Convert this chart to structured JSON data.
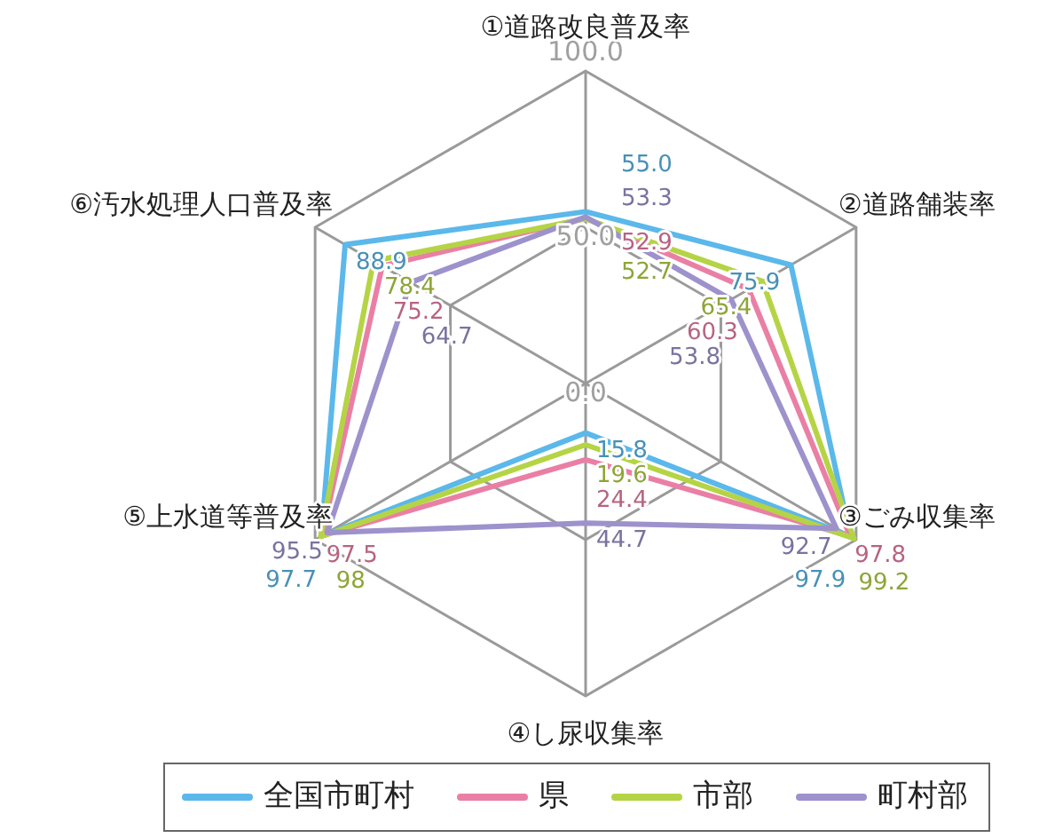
{
  "chart_data": {
    "type": "radar",
    "categories": [
      "①道路改良普及率",
      "②道路舗装率",
      "③ごみ収集率",
      "④し尿収集率",
      "⑤上水道等普及率",
      "⑥汚水処理人口普及率"
    ],
    "ylim": [
      0,
      100
    ],
    "yticks": [
      {
        "value": 0,
        "label": "0.0"
      },
      {
        "value": 50,
        "label": "50.0"
      },
      {
        "value": 100,
        "label": "100.0"
      }
    ],
    "grid": true,
    "legend": "bottom",
    "series": [
      {
        "name": "全国市町村",
        "color": "#5bb8ea",
        "values": [
          55.0,
          75.9,
          97.9,
          15.8,
          97.7,
          88.9
        ],
        "value_labels": [
          "55.0",
          "75.9",
          "97.9",
          "15.8",
          "97.7",
          "88.9"
        ]
      },
      {
        "name": "県",
        "color": "#ea7fa5",
        "values": [
          52.9,
          60.3,
          97.8,
          24.4,
          97.5,
          75.2
        ],
        "value_labels": [
          "52.9",
          "60.3",
          "97.8",
          "24.4",
          "97.5",
          "75.2"
        ]
      },
      {
        "name": "市部",
        "color": "#b5d445",
        "values": [
          52.7,
          65.4,
          99.2,
          19.6,
          98,
          78.4
        ],
        "value_labels": [
          "52.7",
          "65.4",
          "99.2",
          "19.6",
          "98",
          "78.4"
        ]
      },
      {
        "name": "町村部",
        "color": "#9d92cc",
        "values": [
          53.3,
          53.8,
          92.7,
          44.7,
          95.5,
          64.7
        ],
        "value_labels": [
          "53.3",
          "53.8",
          "92.7",
          "44.7",
          "95.5",
          "64.7"
        ]
      }
    ]
  }
}
